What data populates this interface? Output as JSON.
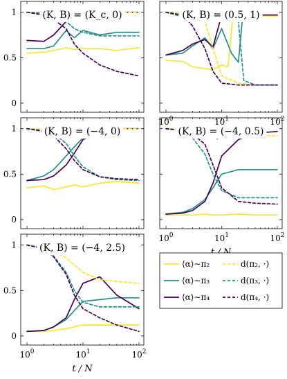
{
  "chart_data": {
    "type": "line",
    "layout": "3x2 grid of line plots with shared legend",
    "xaxis": {
      "scale": "log",
      "range": [
        1,
        100
      ],
      "ticks": [
        1,
        10,
        100
      ],
      "tick_labels": [
        "10^0",
        "10^1",
        "10^2"
      ],
      "label": "t / N"
    },
    "yaxis": {
      "range": [
        0,
        1
      ],
      "ticks": [
        0,
        0.5,
        1
      ],
      "tick_labels": [
        "0",
        "0.5",
        "1"
      ]
    },
    "grid": false,
    "colors": {
      "pi2": "#fde725",
      "pi3": "#21918c",
      "pi4": "#440154"
    },
    "legend": {
      "placement": "bottom-right cell",
      "entries": [
        {
          "key": "alpha_pi2",
          "label": "⟨α⟩∼π₂",
          "style": "solid",
          "color": "#fde725"
        },
        {
          "key": "d_pi2",
          "label": "d(π₂, ·)",
          "style": "dashed",
          "color": "#fde725"
        },
        {
          "key": "alpha_pi3",
          "label": "⟨α⟩∼π₃",
          "style": "solid",
          "color": "#21918c"
        },
        {
          "key": "d_pi3",
          "label": "d(π₃, ·)",
          "style": "dashed",
          "color": "#21918c"
        },
        {
          "key": "alpha_pi4",
          "label": "⟨α⟩∼π₄",
          "style": "solid",
          "color": "#440154"
        },
        {
          "key": "d_pi4",
          "label": "d(π₄, ·)",
          "style": "dashed",
          "color": "#440154"
        }
      ]
    },
    "panels": [
      {
        "title": "(K, B) = (K_c, 0)",
        "series": [
          {
            "key": "alpha_pi2",
            "x": [
              1,
              2,
              3,
              5,
              7,
              10,
              20,
              40,
              100
            ],
            "y": [
              0.55,
              0.56,
              0.58,
              0.61,
              0.59,
              0.6,
              0.6,
              0.58,
              0.61
            ]
          },
          {
            "key": "alpha_pi3",
            "x": [
              1,
              2,
              3,
              5,
              7,
              10,
              20,
              40,
              100
            ],
            "y": [
              0.6,
              0.6,
              0.63,
              0.8,
              0.72,
              0.8,
              0.75,
              0.78,
              0.78
            ]
          },
          {
            "key": "alpha_pi4",
            "x": [
              1,
              2,
              3,
              5,
              7,
              10,
              20,
              40,
              100
            ],
            "y": [
              0.69,
              0.68,
              0.75,
              0.9,
              0.95,
              0.99,
              1,
              1,
              1
            ]
          },
          {
            "key": "d_pi2",
            "x": [
              1,
              2,
              3,
              5,
              7,
              10,
              20,
              40,
              100
            ],
            "y": [
              1,
              1,
              1,
              1,
              1,
              1,
              1,
              1,
              1
            ]
          },
          {
            "key": "d_pi3",
            "x": [
              1,
              2,
              3,
              5,
              7,
              10,
              20,
              40,
              100
            ],
            "y": [
              1,
              0.99,
              0.97,
              0.9,
              0.82,
              0.78,
              0.74,
              0.74,
              0.74
            ]
          },
          {
            "key": "d_pi4",
            "x": [
              1,
              2,
              3,
              5,
              7,
              10,
              20,
              40,
              100
            ],
            "y": [
              1,
              0.97,
              0.92,
              0.82,
              0.65,
              0.55,
              0.42,
              0.35,
              0.3
            ]
          }
        ]
      },
      {
        "title": "(K, B) = (0.5, 1)",
        "series": [
          {
            "key": "alpha_pi2",
            "x": [
              1,
              2,
              3,
              5,
              7,
              10,
              13,
              16,
              20,
              40,
              100
            ],
            "y": [
              0.47,
              0.46,
              0.4,
              0.38,
              0.37,
              0.42,
              0.4,
              0.96,
              0.96,
              0.96,
              0.96
            ]
          },
          {
            "key": "alpha_pi3",
            "x": [
              1,
              2,
              3,
              5,
              7,
              10,
              15,
              20,
              24,
              40,
              100
            ],
            "y": [
              0.53,
              0.55,
              0.63,
              0.72,
              0.6,
              0.82,
              0.55,
              0.45,
              0.97,
              0.97,
              0.97
            ]
          },
          {
            "key": "alpha_pi4",
            "x": [
              1,
              2,
              3,
              5,
              7,
              10,
              20,
              40,
              100
            ],
            "y": [
              0.53,
              0.58,
              0.65,
              0.7,
              0.62,
              0.97,
              0.97,
              0.97,
              0.97
            ]
          },
          {
            "key": "d_pi2",
            "x": [
              1,
              2,
              3,
              5,
              7,
              10,
              20,
              40,
              100
            ],
            "y": [
              1,
              1,
              0.98,
              0.9,
              0.6,
              0.3,
              0.22,
              0.2,
              0.2
            ]
          },
          {
            "key": "d_pi3",
            "x": [
              1,
              2,
              3,
              5,
              7,
              10,
              15,
              20,
              25,
              40,
              100
            ],
            "y": [
              1,
              0.95,
              0.9,
              0.9,
              0.9,
              0.9,
              0.9,
              0.9,
              0.25,
              0.2,
              0.2
            ]
          },
          {
            "key": "d_pi4",
            "x": [
              1,
              2,
              3,
              5,
              7,
              10,
              20,
              40,
              100
            ],
            "y": [
              1,
              0.97,
              0.85,
              0.6,
              0.35,
              0.22,
              0.2,
              0.2,
              0.2
            ]
          }
        ]
      },
      {
        "title": "(K, B) = (−4, 0)",
        "series": [
          {
            "key": "alpha_pi2",
            "x": [
              1,
              2,
              3,
              5,
              7,
              10,
              20,
              40,
              100
            ],
            "y": [
              0.35,
              0.37,
              0.33,
              0.36,
              0.38,
              0.36,
              0.4,
              0.42,
              0.4
            ]
          },
          {
            "key": "alpha_pi3",
            "x": [
              1,
              2,
              3,
              5,
              7,
              10,
              20,
              40,
              100
            ],
            "y": [
              0.43,
              0.48,
              0.55,
              0.7,
              0.8,
              0.9,
              0.97,
              1,
              1
            ]
          },
          {
            "key": "alpha_pi4",
            "x": [
              1,
              2,
              3,
              5,
              7,
              10,
              20,
              40,
              100
            ],
            "y": [
              0.43,
              0.44,
              0.48,
              0.6,
              0.73,
              0.88,
              0.97,
              1,
              1
            ]
          },
          {
            "key": "d_pi2",
            "x": [
              1,
              2,
              3,
              5,
              7,
              10,
              20,
              40,
              100
            ],
            "y": [
              1,
              1,
              1,
              0.99,
              0.99,
              0.99,
              0.99,
              1,
              1
            ]
          },
          {
            "key": "d_pi3",
            "x": [
              1,
              2,
              3,
              5,
              7,
              10,
              20,
              40,
              100
            ],
            "y": [
              1,
              0.98,
              0.94,
              0.84,
              0.7,
              0.58,
              0.47,
              0.44,
              0.43
            ]
          },
          {
            "key": "d_pi4",
            "x": [
              1,
              2,
              3,
              5,
              7,
              10,
              20,
              40,
              100
            ],
            "y": [
              1,
              0.97,
              0.92,
              0.78,
              0.65,
              0.55,
              0.47,
              0.45,
              0.44
            ]
          }
        ]
      },
      {
        "title": "(K, B) = (−4, 0.5)",
        "series": [
          {
            "key": "alpha_pi2",
            "x": [
              1,
              2,
              3,
              5,
              7,
              10,
              20,
              40,
              100
            ],
            "y": [
              0.05,
              0.05,
              0.05,
              0.06,
              0.05,
              0.05,
              0.06,
              0.05,
              0.05
            ]
          },
          {
            "key": "alpha_pi3",
            "x": [
              1,
              2,
              3,
              5,
              7,
              10,
              20,
              40,
              100
            ],
            "y": [
              0.06,
              0.08,
              0.12,
              0.22,
              0.35,
              0.5,
              0.55,
              0.55,
              0.55
            ]
          },
          {
            "key": "alpha_pi4",
            "x": [
              1,
              2,
              3,
              5,
              7,
              10,
              20,
              40,
              100
            ],
            "y": [
              0.06,
              0.07,
              0.1,
              0.2,
              0.4,
              0.7,
              0.88,
              0.95,
              0.97
            ]
          },
          {
            "key": "d_pi2",
            "x": [
              1,
              2,
              3,
              5,
              7,
              10,
              20,
              40,
              100
            ],
            "y": [
              1,
              1,
              0.99,
              0.98,
              0.97,
              0.95,
              0.93,
              0.93,
              0.92
            ]
          },
          {
            "key": "d_pi3",
            "x": [
              1,
              2,
              3,
              5,
              7,
              10,
              20,
              40,
              100
            ],
            "y": [
              1,
              0.98,
              0.9,
              0.72,
              0.5,
              0.32,
              0.24,
              0.24,
              0.24
            ]
          },
          {
            "key": "d_pi4",
            "x": [
              1,
              2,
              3,
              5,
              7,
              10,
              20,
              40,
              100
            ],
            "y": [
              1,
              0.98,
              0.94,
              0.83,
              0.6,
              0.35,
              0.2,
              0.18,
              0.17
            ]
          }
        ]
      },
      {
        "title": "(K, B) = (−4, 2.5)",
        "series": [
          {
            "key": "alpha_pi2",
            "x": [
              1,
              2,
              3,
              5,
              7,
              10,
              20,
              40,
              100
            ],
            "y": [
              0.05,
              0.05,
              0.06,
              0.08,
              0.1,
              0.12,
              0.12,
              0.12,
              0.12
            ]
          },
          {
            "key": "alpha_pi3",
            "x": [
              1,
              2,
              3,
              5,
              7,
              10,
              20,
              40,
              100
            ],
            "y": [
              0.05,
              0.06,
              0.1,
              0.18,
              0.28,
              0.38,
              0.4,
              0.42,
              0.42
            ]
          },
          {
            "key": "alpha_pi4",
            "x": [
              1,
              2,
              3,
              5,
              7,
              10,
              20,
              40,
              100
            ],
            "y": [
              0.05,
              0.06,
              0.1,
              0.2,
              0.4,
              0.58,
              0.65,
              0.45,
              0.3
            ]
          },
          {
            "key": "d_pi2",
            "x": [
              1,
              2,
              3,
              5,
              7,
              10,
              20,
              40,
              100
            ],
            "y": [
              1,
              0.97,
              0.93,
              0.86,
              0.78,
              0.7,
              0.62,
              0.6,
              0.58
            ]
          },
          {
            "key": "d_pi3",
            "x": [
              1,
              2,
              3,
              5,
              7,
              10,
              20,
              40,
              100
            ],
            "y": [
              1,
              0.97,
              0.88,
              0.7,
              0.5,
              0.37,
              0.32,
              0.32,
              0.32
            ]
          },
          {
            "key": "d_pi4",
            "x": [
              1,
              2,
              3,
              5,
              7,
              10,
              20,
              40,
              100
            ],
            "y": [
              1,
              0.96,
              0.87,
              0.68,
              0.45,
              0.3,
              0.2,
              0.12,
              0.05
            ]
          }
        ]
      }
    ]
  }
}
